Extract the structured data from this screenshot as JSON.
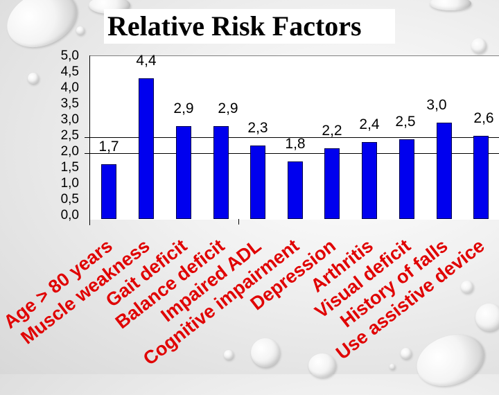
{
  "slide": {
    "title": "Relative Risk Factors"
  },
  "chart_data": {
    "type": "bar",
    "title": "Relative Risk Factors",
    "xlabel": "",
    "ylabel": "",
    "ylim": [
      0,
      5
    ],
    "yticks": [
      "0,0",
      "0,5",
      "1,0",
      "1,5",
      "2,0",
      "2,5",
      "3,0",
      "3,5",
      "4,0",
      "4,5",
      "5,0"
    ],
    "grid": "horizontal lines at 2,0 and 2,5",
    "legend": "none",
    "bar_color": "#0000ee",
    "label_color": "#e00000",
    "categories": [
      "Age > 80 years",
      "Muscle weakness",
      "Gait deficit",
      "Balance deficit",
      "Impaired ADL",
      "Cognitive impairment",
      "Depression",
      "Arthritis",
      "Visual deficit",
      "History of falls",
      "Use assistive device"
    ],
    "values": [
      1.7,
      4.4,
      2.9,
      2.9,
      2.3,
      1.8,
      2.2,
      2.4,
      2.5,
      3.0,
      2.6
    ],
    "value_labels": [
      "1,7",
      "4,4",
      "2,9",
      "2,9",
      "2,3",
      "1,8",
      "2,2",
      "2,4",
      "2,5",
      "3,0",
      "2,6"
    ]
  }
}
